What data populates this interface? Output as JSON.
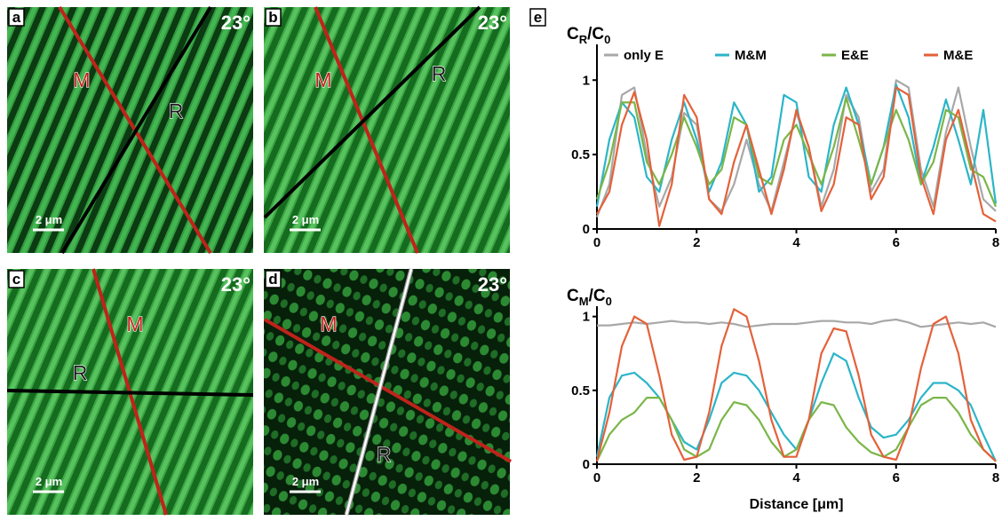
{
  "panels": [
    {
      "label": "a",
      "angle": "23°",
      "m": "M",
      "r": "R",
      "scale": "2 μm"
    },
    {
      "label": "b",
      "angle": "23°",
      "m": "M",
      "r": "R",
      "scale": "2 μm"
    },
    {
      "label": "c",
      "angle": "23°",
      "m": "M",
      "r": "R",
      "scale": "2 μm"
    },
    {
      "label": "d",
      "angle": "23°",
      "m": "M",
      "r": "R",
      "scale": "2 μm"
    }
  ],
  "panel_e_label": "e",
  "chart_data": [
    {
      "type": "line",
      "ylabel": [
        "C",
        "R",
        "/C",
        "0"
      ],
      "legend": "top",
      "x": [
        0,
        0.25,
        0.5,
        0.75,
        1,
        1.25,
        1.5,
        1.75,
        2,
        2.25,
        2.5,
        2.75,
        3,
        3.25,
        3.5,
        3.75,
        4,
        4.25,
        4.5,
        4.75,
        5,
        5.25,
        5.5,
        5.75,
        6,
        6.25,
        6.5,
        6.75,
        7,
        7.25,
        7.5,
        7.75,
        8
      ],
      "xlim": [
        0,
        8
      ],
      "xticks": [
        0,
        2,
        4,
        6,
        8
      ],
      "ylim": [
        0,
        1.24
      ],
      "yticks": [
        0,
        0.5,
        1
      ],
      "series": [
        {
          "name": "only E",
          "color": "#a8a8a8",
          "values": [
            0.08,
            0.3,
            0.9,
            0.95,
            0.5,
            0.15,
            0.35,
            0.78,
            0.7,
            0.2,
            0.12,
            0.3,
            0.6,
            0.3,
            0.12,
            0.45,
            0.78,
            0.55,
            0.15,
            0.4,
            0.9,
            0.75,
            0.25,
            0.4,
            1.0,
            0.95,
            0.4,
            0.15,
            0.65,
            0.95,
            0.55,
            0.2,
            0.12
          ]
        },
        {
          "name": "M&M",
          "color": "#2bb5c8",
          "values": [
            0.15,
            0.6,
            0.85,
            0.75,
            0.35,
            0.25,
            0.6,
            0.85,
            0.6,
            0.25,
            0.45,
            0.85,
            0.7,
            0.25,
            0.35,
            0.9,
            0.85,
            0.35,
            0.25,
            0.7,
            0.95,
            0.7,
            0.3,
            0.55,
            0.97,
            0.75,
            0.3,
            0.55,
            0.87,
            0.6,
            0.3,
            0.8,
            0.17
          ]
        },
        {
          "name": "E&E",
          "color": "#7ab648",
          "values": [
            0.2,
            0.45,
            0.85,
            0.85,
            0.45,
            0.3,
            0.5,
            0.75,
            0.55,
            0.3,
            0.4,
            0.75,
            0.7,
            0.35,
            0.3,
            0.6,
            0.7,
            0.5,
            0.3,
            0.55,
            0.88,
            0.6,
            0.3,
            0.55,
            0.8,
            0.6,
            0.3,
            0.45,
            0.8,
            0.75,
            0.4,
            0.35,
            0.15
          ]
        },
        {
          "name": "M&E",
          "color": "#e4613a",
          "values": [
            0.1,
            0.25,
            0.7,
            0.92,
            0.6,
            0.02,
            0.3,
            0.9,
            0.75,
            0.2,
            0.1,
            0.45,
            0.7,
            0.4,
            0.1,
            0.4,
            0.8,
            0.55,
            0.12,
            0.3,
            0.75,
            0.7,
            0.2,
            0.35,
            0.95,
            0.9,
            0.35,
            0.1,
            0.6,
            0.8,
            0.45,
            0.1,
            0.05
          ]
        }
      ]
    },
    {
      "type": "line",
      "ylabel": [
        "C",
        "M",
        "/C",
        "0"
      ],
      "xlabel": "Distance [μm]",
      "x": [
        0,
        0.25,
        0.5,
        0.75,
        1,
        1.25,
        1.5,
        1.75,
        2,
        2.25,
        2.5,
        2.75,
        3,
        3.25,
        3.5,
        3.75,
        4,
        4.25,
        4.5,
        4.75,
        5,
        5.25,
        5.5,
        5.75,
        6,
        6.25,
        6.5,
        6.75,
        7,
        7.25,
        7.5,
        7.75,
        8
      ],
      "xlim": [
        0,
        8
      ],
      "xticks": [
        0,
        2,
        4,
        6,
        8
      ],
      "ylim": [
        0,
        1.07
      ],
      "yticks": [
        0,
        0.5,
        1
      ],
      "series": [
        {
          "color": "#a8a8a8",
          "values": [
            0.94,
            0.94,
            0.95,
            0.96,
            0.95,
            0.96,
            0.97,
            0.96,
            0.96,
            0.95,
            0.96,
            0.95,
            0.93,
            0.94,
            0.95,
            0.95,
            0.95,
            0.96,
            0.97,
            0.97,
            0.96,
            0.96,
            0.95,
            0.97,
            0.98,
            0.96,
            0.93,
            0.94,
            0.95,
            0.96,
            0.95,
            0.96,
            0.93
          ]
        },
        {
          "color": "#2bb5c8",
          "values": [
            0.05,
            0.45,
            0.6,
            0.62,
            0.55,
            0.45,
            0.3,
            0.15,
            0.1,
            0.3,
            0.55,
            0.62,
            0.6,
            0.5,
            0.35,
            0.2,
            0.1,
            0.3,
            0.55,
            0.75,
            0.7,
            0.45,
            0.25,
            0.18,
            0.2,
            0.3,
            0.45,
            0.55,
            0.55,
            0.5,
            0.4,
            0.2,
            0.02
          ]
        },
        {
          "color": "#7ab648",
          "values": [
            0.02,
            0.2,
            0.3,
            0.35,
            0.45,
            0.45,
            0.3,
            0.1,
            0.05,
            0.1,
            0.3,
            0.42,
            0.4,
            0.3,
            0.15,
            0.05,
            0.1,
            0.3,
            0.42,
            0.4,
            0.25,
            0.15,
            0.08,
            0.05,
            0.1,
            0.25,
            0.4,
            0.45,
            0.45,
            0.35,
            0.2,
            0.1,
            0.02
          ]
        },
        {
          "color": "#e4613a",
          "values": [
            0.02,
            0.35,
            0.8,
            1.0,
            0.95,
            0.6,
            0.2,
            0.03,
            0.05,
            0.35,
            0.8,
            1.05,
            1.0,
            0.7,
            0.3,
            0.05,
            0.05,
            0.3,
            0.75,
            0.92,
            0.9,
            0.6,
            0.2,
            0.05,
            0.03,
            0.25,
            0.65,
            0.95,
            1.0,
            0.75,
            0.3,
            0.1,
            0.02
          ]
        }
      ]
    }
  ]
}
